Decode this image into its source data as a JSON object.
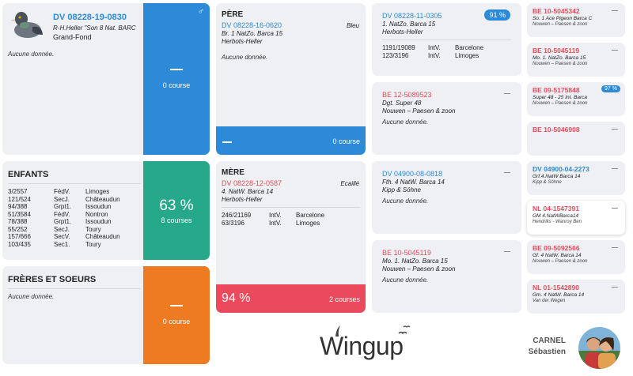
{
  "main": {
    "ring": "DV 08228-19-0830",
    "line1": "R-H.Heller \"Son 8 Nat. BARC",
    "line2": "Grand-Fond",
    "no_data": "Aucune donnée.",
    "courses": "0 course"
  },
  "enfants": {
    "title": "ENFANTS",
    "pct": "63 %",
    "courses": "8 courses",
    "rows": [
      [
        "3/2557",
        "FédV.",
        "Limoges"
      ],
      [
        "121/524",
        "SecJ.",
        "Châteaudun"
      ],
      [
        "94/388",
        "Grpt1.",
        "Issoudun"
      ],
      [
        "51/3584",
        "FédV.",
        "Nontron"
      ],
      [
        "78/388",
        "Grpt1.",
        "Issoudun"
      ],
      [
        "55/252",
        "SecJ.",
        "Toury"
      ],
      [
        "157/666",
        "SecV.",
        "Châteaudun"
      ],
      [
        "103/435",
        "Sec1.",
        "Toury"
      ]
    ]
  },
  "freres": {
    "title": "FRÈRES ET SOEURS",
    "no_data": "Aucune donnée.",
    "courses": "0 course"
  },
  "pere": {
    "title": "PÈRE",
    "ring": "DV 08228-16-0620",
    "color": "Bleu",
    "line1": "Br. 1 NatZo. Barca 15",
    "line2": "Herbots-Heller",
    "no_data": "Aucune donnée.",
    "courses": "0 course"
  },
  "mere": {
    "title": "MÈRE",
    "ring": "DV 08228-12-0587",
    "color": "Ecaillé",
    "line1": "4. NatW. Barca 14",
    "line2": "Herbots-Heller",
    "rows": [
      [
        "246/21169",
        "IntV.",
        "Barcelone"
      ],
      [
        "63/3196",
        "IntV.",
        "Limoges"
      ]
    ],
    "pct": "94 %",
    "courses": "2 courses"
  },
  "gp": [
    {
      "ring": "DV 08228-11-0305",
      "pct": "91 %",
      "line1": "1. NatZo. Barca 15",
      "line2": "Herbots-Heller",
      "rows": [
        [
          "1191/19089",
          "IntV.",
          "Barcelone"
        ],
        [
          "123/3196",
          "IntV.",
          "Limoges"
        ]
      ]
    },
    {
      "ring": "BE 12-5089523",
      "line1": "Dgt. Super 48",
      "line2": "Nouwen – Paesen & zoon",
      "no_data": "Aucune donnée."
    },
    {
      "ring": "DV 04900-08-0818",
      "line1": "Fth. 4 NatW. Barca 14",
      "line2": "Kipp & Söhne",
      "no_data": "Aucune donnée."
    },
    {
      "ring": "BE 10-5045119",
      "line1": "Mo. 1. NatZo. Barca 15",
      "line2": "Nouwen – Paesen & zoon",
      "no_data": "Aucune donnée."
    }
  ],
  "ggp": [
    {
      "ring": "BE 10-5045342",
      "line1": "So. 1 Ace Pigeon Barca C",
      "line2": "Nouwen – Paesen & zoon"
    },
    {
      "ring": "BE 10-5045119",
      "line1": "Mo. 1. NatZo. Barca 15",
      "line2": "Nouwen – Paesen & zoon"
    },
    {
      "ring": "BE 09-5175848",
      "pct": "97 %",
      "line1": "Super 48 - 25 Int. Barca",
      "line2": "Nouwen – Paesen & zoon"
    },
    {
      "ring": "BE 10-5046908",
      "line1": "",
      "line2": ""
    },
    {
      "ring": "DV 04900-04-2273",
      "line1": "Grf.4.NatW Barca 14",
      "line2": "Kipp & Söhne"
    },
    {
      "ring": "NL 04-1547391",
      "line1": "GM 4.NatWBarca14",
      "line2": "Hendriks - Wanroy Ben"
    },
    {
      "ring": "BE 09-5092566",
      "line1": "Gf. 4 NatW. Barca 14",
      "line2": "Nouwen – Paesen & zoon"
    },
    {
      "ring": "NL 01-1542890",
      "line1": "Gm. 4 NatW. Barca 14",
      "line2": "Van der Wegen"
    }
  ],
  "brand": {
    "logo": "Wingup"
  },
  "user": {
    "last": "CARNEL",
    "first": "Sébastien"
  },
  "colors": {
    "blue": "#2d8ad8",
    "red": "#ea4a5b",
    "green": "#26a98b",
    "orange": "#ee7a22",
    "card": "#eef0f3"
  }
}
